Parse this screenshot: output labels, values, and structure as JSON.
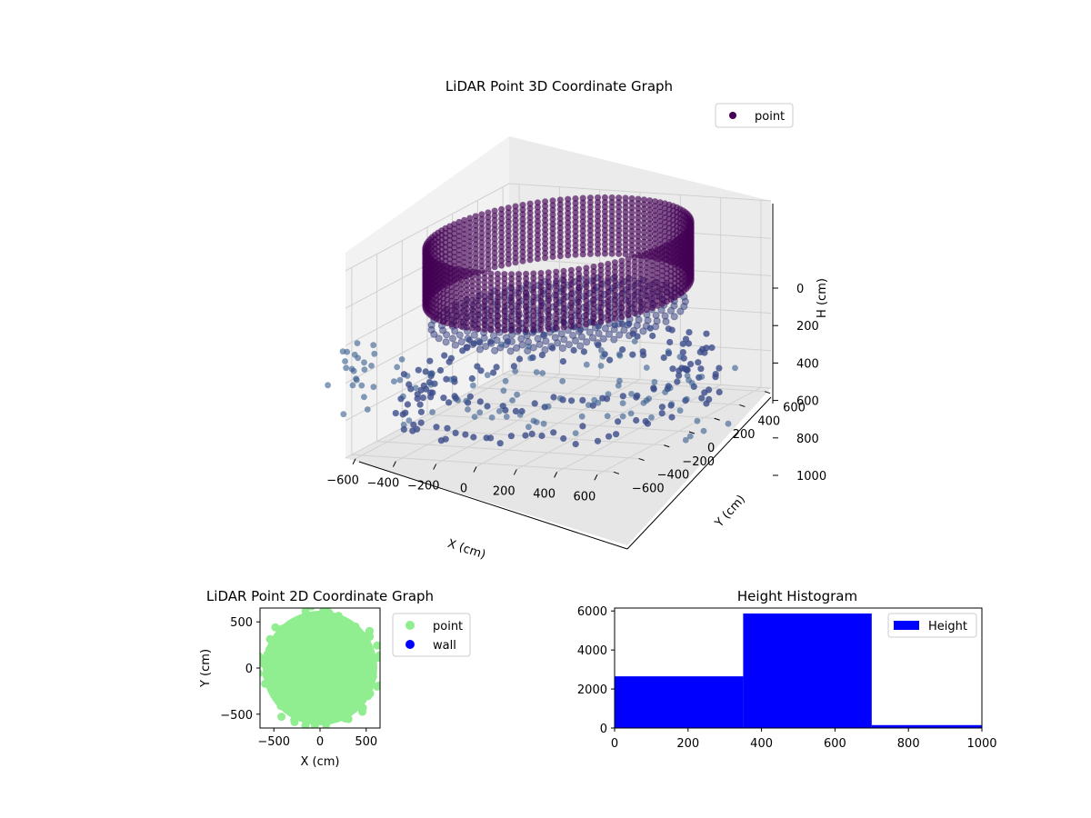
{
  "chart_data": [
    {
      "type": "scatter",
      "projection": "3d",
      "title": "LiDAR Point 3D Coordinate Graph",
      "xlabel": "X (cm)",
      "ylabel": "Y (cm)",
      "zlabel": "H (cm)",
      "x_ticks": [
        "−600",
        "−400",
        "−200",
        "0",
        "200",
        "400",
        "600"
      ],
      "y_ticks": [
        "−600",
        "−400",
        "−200",
        "0",
        "200",
        "400",
        "600"
      ],
      "z_ticks": [
        "0",
        "200",
        "400",
        "600",
        "800",
        "1000"
      ],
      "xlim": [
        -650,
        650
      ],
      "ylim": [
        -650,
        650
      ],
      "zlim": [
        0,
        1000
      ],
      "z_inverted": true,
      "colormap": "viridis",
      "legend": {
        "entries": [
          "point"
        ],
        "placement": "top-right",
        "marker_color": "#440154"
      },
      "series": [
        {
          "name": "point",
          "description_shapes": [
            {
              "shape": "cylinder_wall",
              "center": [
                0,
                0
              ],
              "radius": 560,
              "h_range": [
                0,
                300
              ]
            },
            {
              "shape": "disc",
              "center": [
                0,
                0
              ],
              "radius": 560,
              "h": 420
            },
            {
              "shape": "ring",
              "center": [
                0,
                0
              ],
              "radius": 600,
              "h": 700
            },
            {
              "shape": "ring",
              "center": [
                0,
                0
              ],
              "radius": 640,
              "h": 860
            }
          ]
        }
      ],
      "grid": true
    },
    {
      "type": "scatter",
      "title": "LiDAR Point 2D Coordinate Graph",
      "xlabel": "X (cm)",
      "ylabel": "Y (cm)",
      "x_ticks": [
        "−500",
        "0",
        "500"
      ],
      "y_ticks": [
        "500",
        "0",
        "−500"
      ],
      "xlim": [
        -650,
        650
      ],
      "ylim": [
        -650,
        650
      ],
      "series": [
        {
          "name": "point",
          "color": "#90ee90",
          "shape": "disc",
          "center": [
            0,
            0
          ],
          "radius": 620
        },
        {
          "name": "wall",
          "color": "#0000ff",
          "values": []
        }
      ],
      "legend": {
        "placement": "outside-right"
      }
    },
    {
      "type": "bar",
      "subtype": "histogram",
      "title": "Height Histogram",
      "bins": [
        [
          0,
          350
        ],
        [
          350,
          700
        ],
        [
          700,
          1000
        ]
      ],
      "values": [
        2650,
        5870,
        150
      ],
      "x_ticks": [
        "0",
        "200",
        "400",
        "600",
        "800",
        "1000"
      ],
      "y_ticks": [
        "0",
        "2000",
        "4000",
        "6000"
      ],
      "xlim": [
        0,
        1000
      ],
      "ylim": [
        0,
        6150
      ],
      "color": "#0000ff",
      "legend": {
        "entries": [
          "Height"
        ],
        "placement": "top-right"
      }
    }
  ]
}
